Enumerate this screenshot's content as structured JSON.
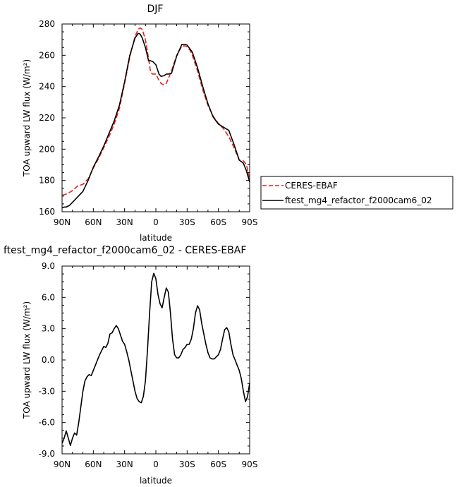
{
  "chart_data": [
    {
      "type": "line",
      "title": "DJF",
      "xlabel": "latitude",
      "ylabel": "TOA upward LW flux (W/m²)",
      "x_ticks": [
        "90N",
        "60N",
        "30N",
        "0",
        "30S",
        "60S",
        "90S"
      ],
      "y_ticks": [
        "160",
        "180",
        "200",
        "220",
        "240",
        "260",
        "280"
      ],
      "xlim": [
        90,
        -90
      ],
      "ylim": [
        160,
        280
      ],
      "grid": false,
      "legend_position": "outside-right",
      "series": [
        {
          "name": "CERES-EBAF",
          "color": "#e8211a",
          "style": "dashed",
          "x": [
            90,
            85,
            80,
            75,
            70,
            65,
            60,
            55,
            50,
            45,
            40,
            35,
            30,
            25,
            20,
            17,
            15,
            13,
            10,
            7,
            5,
            3,
            0,
            -3,
            -5,
            -8,
            -10,
            -15,
            -20,
            -25,
            -28,
            -30,
            -33,
            -35,
            -40,
            -45,
            -50,
            -55,
            -60,
            -65,
            -70,
            -75,
            -80,
            -84,
            -87,
            -90
          ],
          "y": [
            170.5,
            171.5,
            173.5,
            176.5,
            177.5,
            181,
            188,
            194,
            201,
            208,
            216,
            226,
            242,
            259,
            272,
            276.5,
            277.5,
            276.5,
            270,
            258,
            249,
            248,
            248,
            244,
            242,
            241,
            242,
            250,
            260,
            266,
            266,
            265.5,
            263,
            260,
            250,
            238,
            228,
            221,
            216.5,
            213,
            208,
            201,
            193,
            192.5,
            190,
            180
          ]
        },
        {
          "name": "ftest_mg4_refactor_f2000cam6_02",
          "color": "#000000",
          "style": "solid",
          "x": [
            90,
            88,
            86,
            83,
            80,
            75,
            70,
            65,
            60,
            55,
            50,
            45,
            40,
            35,
            30,
            25,
            20,
            17,
            15,
            13,
            10,
            7,
            5,
            3,
            0,
            -3,
            -5,
            -8,
            -10,
            -12,
            -15,
            -20,
            -25,
            -28,
            -30,
            -35,
            -40,
            -45,
            -50,
            -55,
            -60,
            -65,
            -70,
            -75,
            -80,
            -84,
            -87,
            -90
          ],
          "y": [
            162.5,
            163,
            163,
            164,
            166,
            169.5,
            173,
            180,
            188.5,
            195,
            202,
            210,
            218,
            228,
            243,
            260,
            271,
            274,
            273.5,
            271,
            265,
            256.5,
            256.5,
            256,
            254,
            248,
            246.5,
            247,
            248,
            248,
            248.5,
            259.5,
            267,
            267,
            266.5,
            262,
            252,
            240,
            229,
            220.5,
            216,
            214,
            212,
            203,
            193,
            191,
            186,
            179
          ]
        }
      ]
    },
    {
      "type": "line",
      "title": "ftest_mg4_refactor_f2000cam6_02 - CERES-EBAF",
      "xlabel": "latitude",
      "ylabel": "TOA upward LW flux (W/m²)",
      "x_ticks": [
        "90N",
        "60N",
        "30N",
        "0",
        "30S",
        "60S",
        "90S"
      ],
      "y_ticks": [
        "9.0",
        "6.0",
        "3.0",
        "0.0",
        "-3.0",
        "-6.0",
        "-9.0"
      ],
      "xlim": [
        90,
        -90
      ],
      "ylim": [
        -9,
        9
      ],
      "grid": false,
      "series": [
        {
          "color": "#000000",
          "style": "solid",
          "x": [
            90,
            88,
            86,
            84,
            82,
            80,
            78,
            76,
            74,
            72,
            70,
            68,
            66,
            64,
            62,
            60,
            58,
            56,
            54,
            52,
            50,
            48,
            46,
            44,
            42,
            40,
            38,
            36,
            34,
            32,
            30,
            28,
            26,
            24,
            22,
            20,
            18,
            16,
            14,
            12,
            10,
            8,
            6,
            4,
            2,
            0,
            -2,
            -4,
            -6,
            -8,
            -10,
            -12,
            -14,
            -16,
            -18,
            -20,
            -22,
            -24,
            -26,
            -28,
            -30,
            -32,
            -34,
            -36,
            -38,
            -40,
            -42,
            -44,
            -46,
            -48,
            -50,
            -52,
            -54,
            -56,
            -58,
            -60,
            -62,
            -64,
            -66,
            -68,
            -70,
            -72,
            -74,
            -76,
            -78,
            -80,
            -82,
            -84,
            -86,
            -88,
            -90
          ],
          "y": [
            -8.0,
            -7.5,
            -6.8,
            -7.5,
            -8.2,
            -7.5,
            -7.0,
            -7.2,
            -6.0,
            -4.5,
            -3.0,
            -2.0,
            -1.6,
            -1.4,
            -1.5,
            -1.0,
            -0.5,
            0.0,
            0.5,
            0.9,
            1.3,
            1.2,
            1.6,
            2.5,
            2.6,
            3.0,
            3.3,
            3.0,
            2.4,
            1.8,
            1.5,
            0.8,
            0.0,
            -1.0,
            -2.0,
            -3.0,
            -3.7,
            -4.0,
            -4.1,
            -3.5,
            -2.0,
            1.0,
            4.5,
            7.5,
            8.3,
            7.8,
            6.3,
            5.4,
            5.0,
            6.0,
            6.9,
            6.5,
            4.5,
            2.0,
            0.5,
            0.2,
            0.2,
            0.5,
            1.0,
            1.2,
            1.5,
            1.5,
            2.0,
            3.0,
            4.5,
            5.2,
            4.8,
            3.5,
            2.5,
            1.5,
            0.7,
            0.2,
            0.1,
            0.1,
            0.3,
            0.5,
            1.0,
            2.0,
            2.9,
            3.1,
            2.7,
            1.5,
            0.5,
            0.0,
            -0.5,
            -1.0,
            -1.8,
            -3.0,
            -4.0,
            -3.5,
            -2.2
          ]
        }
      ]
    }
  ]
}
